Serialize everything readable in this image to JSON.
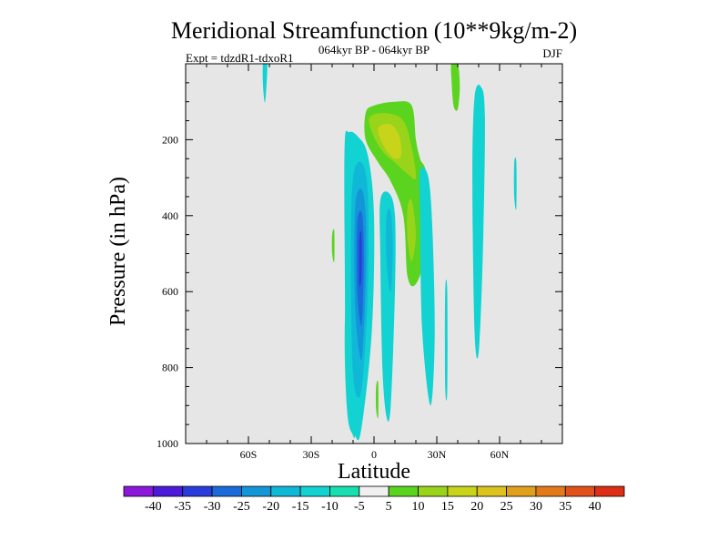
{
  "chart_data": {
    "type": "heatmap",
    "title": "Meridional Streamfunction (10**9kg/m-2)",
    "subtitle": "064kyr BP - 064kyr BP",
    "experiment": "Expt = tdzdR1-tdxoR1",
    "season": "DJF",
    "xlabel": "Latitude",
    "ylabel": "Pressure (in hPa)",
    "xlim": [
      -90,
      90
    ],
    "ylim": [
      1000,
      0
    ],
    "x_ticks": [
      {
        "value": -60,
        "label": "60S"
      },
      {
        "value": -30,
        "label": "30S"
      },
      {
        "value": 0,
        "label": "0"
      },
      {
        "value": 30,
        "label": "30N"
      },
      {
        "value": 60,
        "label": "60N"
      }
    ],
    "y_ticks": [
      {
        "value": 200,
        "label": "200"
      },
      {
        "value": 400,
        "label": "400"
      },
      {
        "value": 600,
        "label": "600"
      },
      {
        "value": 800,
        "label": "800"
      },
      {
        "value": 1000,
        "label": "1000"
      }
    ],
    "background_color": "#e6e6e6",
    "colorbar": {
      "levels": [
        "-40",
        "-35",
        "-30",
        "-25",
        "-20",
        "-15",
        "-10",
        "-5",
        "5",
        "10",
        "15",
        "20",
        "25",
        "30",
        "35",
        "40"
      ],
      "colors": [
        "#8a17d9",
        "#4c1ad9",
        "#2a3bdb",
        "#1a6ad9",
        "#1296d8",
        "#10b8d8",
        "#12d2d2",
        "#18dfb0",
        "#f0f0f0",
        "#5ad41e",
        "#9ad41a",
        "#c8d41a",
        "#dcc21c",
        "#e0a01c",
        "#e27a1c",
        "#e0521a",
        "#dd2e16"
      ]
    },
    "features": [
      {
        "name": "anomaly-south-subtropics",
        "color": "#18dfb0",
        "lat": [
          -12,
          -12,
          -10,
          -9,
          -10,
          -13,
          -14,
          -12
        ],
        "p": [
          440,
          600,
          800,
          960,
          980,
          900,
          700,
          500
        ]
      },
      {
        "name": "anomaly-equatorial-negative",
        "color": "#12d2d2",
        "lat": [
          -14,
          -12,
          -8,
          -3,
          0,
          -1,
          -6,
          -9,
          -13,
          -14
        ],
        "p": [
          210,
          180,
          190,
          240,
          400,
          700,
          960,
          980,
          900,
          500
        ]
      },
      {
        "name": "anomaly-equatorial-core",
        "color": "#10b8d8",
        "lat": [
          -10,
          -6,
          -3,
          -3,
          -6,
          -10,
          -11
        ],
        "p": [
          300,
          260,
          340,
          600,
          860,
          820,
          500
        ]
      },
      {
        "name": "anomaly-equatorial-inner",
        "color": "#1296d8",
        "lat": [
          -9,
          -6,
          -4,
          -4,
          -6,
          -9
        ],
        "p": [
          380,
          330,
          400,
          580,
          780,
          640
        ]
      },
      {
        "name": "anomaly-equatorial-deep",
        "color": "#1a6ad9",
        "lat": [
          -8,
          -6,
          -5,
          -5,
          -6,
          -8
        ],
        "p": [
          420,
          390,
          450,
          570,
          690,
          600
        ]
      },
      {
        "name": "anomaly-equatorial-max",
        "color": "#2a3bdb",
        "lat": [
          -7,
          -6,
          -6,
          -7
        ],
        "p": [
          460,
          450,
          560,
          580
        ]
      },
      {
        "name": "anomaly-north-branch",
        "color": "#12d2d2",
        "lat": [
          3,
          7,
          10,
          10,
          8,
          6,
          4,
          3
        ],
        "p": [
          360,
          340,
          400,
          600,
          900,
          930,
          800,
          500
        ]
      },
      {
        "name": "anomaly-north-branch-core",
        "color": "#10b8d8",
        "lat": [
          6,
          8,
          9,
          8,
          6
        ],
        "p": [
          400,
          390,
          480,
          600,
          520
        ]
      },
      {
        "name": "anomaly-upper-positive",
        "color": "#5ad41e",
        "lat": [
          -4,
          0,
          10,
          18,
          20,
          22,
          25,
          24,
          20,
          16,
          14,
          8,
          2,
          -4
        ],
        "p": [
          130,
          110,
          100,
          110,
          200,
          250,
          300,
          500,
          580,
          560,
          400,
          310,
          260,
          200
        ]
      },
      {
        "name": "anomaly-upper-positive-inner",
        "color": "#9ad41a",
        "lat": [
          -2,
          6,
          14,
          18,
          20,
          16,
          10,
          4,
          -1
        ],
        "p": [
          140,
          130,
          150,
          220,
          300,
          290,
          260,
          230,
          180
        ]
      },
      {
        "name": "anomaly-upper-positive-core",
        "color": "#c8d41a",
        "lat": [
          2,
          8,
          12,
          13,
          10,
          5
        ],
        "p": [
          170,
          160,
          190,
          240,
          250,
          220
        ]
      },
      {
        "name": "anomaly-midlat-positive",
        "color": "#9ad41a",
        "lat": [
          16,
          18,
          20,
          18,
          16
        ],
        "p": [
          380,
          360,
          450,
          520,
          460
        ]
      },
      {
        "name": "anomaly-northern-cell",
        "color": "#12d2d2",
        "lat": [
          22,
          26,
          28,
          29,
          27,
          23,
          22
        ],
        "p": [
          280,
          300,
          450,
          720,
          900,
          700,
          400
        ]
      },
      {
        "name": "anomaly-high-lat-upper",
        "color": "#5ad41e",
        "lat": [
          37,
          40,
          41,
          40,
          38,
          37
        ],
        "p": [
          0,
          0,
          60,
          120,
          110,
          40
        ]
      },
      {
        "name": "anomaly-high-lat-column",
        "color": "#12d2d2",
        "lat": [
          48,
          51,
          53,
          52,
          50,
          48,
          47
        ],
        "p": [
          90,
          60,
          140,
          500,
          760,
          700,
          300
        ]
      },
      {
        "name": "anomaly-polar-upper-south",
        "color": "#12d2d2",
        "lat": [
          -53,
          -51,
          -52,
          -53
        ],
        "p": [
          0,
          0,
          100,
          60
        ]
      },
      {
        "name": "anomaly-polar-north-thin",
        "color": "#12d2d2",
        "lat": [
          67,
          68,
          68,
          67
        ],
        "p": [
          260,
          260,
          380,
          350
        ]
      },
      {
        "name": "anomaly-low-level-south",
        "color": "#5ad41e",
        "lat": [
          -20,
          -19,
          -19,
          -20
        ],
        "p": [
          450,
          440,
          520,
          500
        ]
      },
      {
        "name": "anomaly-surface-equator",
        "color": "#5ad41e",
        "lat": [
          1,
          2,
          2,
          1
        ],
        "p": [
          850,
          840,
          930,
          910
        ]
      },
      {
        "name": "anomaly-surface-north",
        "color": "#12d2d2",
        "lat": [
          34,
          35,
          35,
          34
        ],
        "p": [
          600,
          600,
          860,
          850
        ]
      }
    ]
  }
}
